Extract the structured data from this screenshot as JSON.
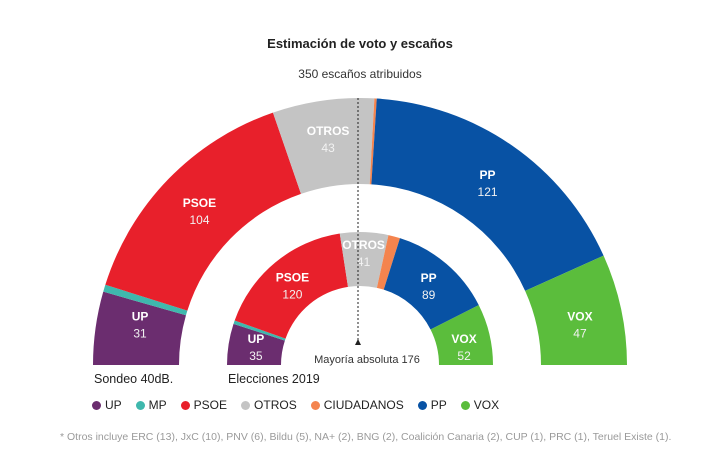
{
  "chart_data": {
    "type": "pie",
    "subtype": "parliament-semicircle",
    "title": "Estimación de voto y escaños",
    "subtitle": "350 escaños atribuidos",
    "total_seats": 350,
    "majority": {
      "label": "Mayoría absoluta 176",
      "value": 176
    },
    "parties": [
      {
        "key": "UP",
        "name": "UP",
        "color": "#6b2d6f"
      },
      {
        "key": "MP",
        "name": "MP",
        "color": "#3fb8ad"
      },
      {
        "key": "PSOE",
        "name": "PSOE",
        "color": "#e8202b"
      },
      {
        "key": "OTROS",
        "name": "OTROS",
        "color": "#c4c4c4"
      },
      {
        "key": "CS",
        "name": "CIUDADANOS",
        "color": "#f4844e"
      },
      {
        "key": "PP",
        "name": "PP",
        "color": "#0852a4"
      },
      {
        "key": "VOX",
        "name": "VOX",
        "color": "#5bbd3c"
      }
    ],
    "series": [
      {
        "name": "Sondeo 40dB.",
        "ring": "outer",
        "values": {
          "UP": 31,
          "MP": 3,
          "PSOE": 104,
          "OTROS": 43,
          "CS": 1,
          "PP": 121,
          "VOX": 47
        },
        "labeled": [
          "UP",
          "PSOE",
          "OTROS",
          "PP",
          "VOX"
        ]
      },
      {
        "name": "Elecciones 2019",
        "ring": "inner",
        "values": {
          "UP": 35,
          "MP": 3,
          "PSOE": 120,
          "OTROS": 41,
          "CS": 10,
          "PP": 89,
          "VOX": 52
        },
        "labeled": [
          "UP",
          "PSOE",
          "OTROS",
          "PP",
          "VOX"
        ]
      }
    ],
    "legend": [
      "UP",
      "MP",
      "PSOE",
      "OTROS",
      "CIUDADANOS",
      "PP",
      "VOX"
    ],
    "legend_position": "bottom-left"
  },
  "captions": {
    "outer": "Sondeo 40dB.",
    "inner": "Elecciones 2019"
  },
  "footnote": "* Otros incluye ERC (13), JxC (10), PNV (6), Bildu (5), NA+ (2), BNG (2), Coalición Canaria (2), CUP (1), PRC (1), Teruel Existe (1)."
}
